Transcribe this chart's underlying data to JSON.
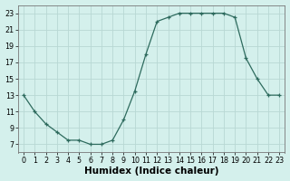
{
  "x": [
    0,
    1,
    2,
    3,
    4,
    5,
    6,
    7,
    8,
    9,
    10,
    11,
    12,
    13,
    14,
    15,
    16,
    17,
    18,
    19,
    20,
    21,
    22,
    23
  ],
  "y": [
    13,
    11,
    9.5,
    8.5,
    7.5,
    7.5,
    7,
    7,
    7.5,
    10,
    13.5,
    18,
    22,
    22.5,
    23,
    23,
    23,
    23,
    23,
    22.5,
    17.5,
    15,
    13,
    13
  ],
  "line_color": "#2e6b5e",
  "bg_color": "#d4f0ec",
  "grid_color": "#b8d8d4",
  "xlabel": "Humidex (Indice chaleur)",
  "yticks": [
    7,
    9,
    11,
    13,
    15,
    17,
    19,
    21,
    23
  ],
  "xtick_labels": [
    "0",
    "1",
    "2",
    "3",
    "4",
    "5",
    "6",
    "7",
    "8",
    "9",
    "10",
    "11",
    "12",
    "13",
    "14",
    "15",
    "16",
    "17",
    "18",
    "19",
    "20",
    "21",
    "22",
    "23"
  ],
  "xlim": [
    -0.5,
    23.5
  ],
  "ylim": [
    6.0,
    24.0
  ],
  "tick_fontsize": 5.8,
  "xlabel_fontsize": 7.5
}
